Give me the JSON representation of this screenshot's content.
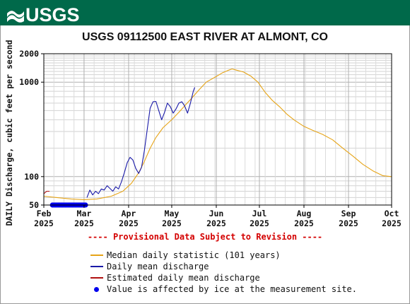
{
  "header": {
    "brand": "USGS"
  },
  "colors": {
    "header": "#00694a",
    "median": "#e6a417",
    "daily": "#1a1aa8",
    "estimated": "#b01010",
    "ice": "#0000ee",
    "provisional": "#d40000"
  },
  "chart_data": {
    "type": "line",
    "title": "USGS 09112500 EAST RIVER AT ALMONT, CO",
    "ylabel": "DAILY Discharge, cubic feet per second",
    "yscale": "log",
    "ylim": [
      50,
      2000
    ],
    "yticks": [
      "50",
      "100",
      "1000",
      "2000"
    ],
    "xlim": [
      "2025-02-01",
      "2025-10-01"
    ],
    "xticks": [
      {
        "date": "2025-02-01",
        "month": "Feb",
        "year": "2025"
      },
      {
        "date": "2025-03-01",
        "month": "Mar",
        "year": "2025"
      },
      {
        "date": "2025-04-01",
        "month": "Apr",
        "year": "2025"
      },
      {
        "date": "2025-05-01",
        "month": "May",
        "year": "2025"
      },
      {
        "date": "2025-06-01",
        "month": "Jun",
        "year": "2025"
      },
      {
        "date": "2025-07-01",
        "month": "Jul",
        "year": "2025"
      },
      {
        "date": "2025-08-01",
        "month": "Aug",
        "year": "2025"
      },
      {
        "date": "2025-09-01",
        "month": "Sep",
        "year": "2025"
      },
      {
        "date": "2025-10-01",
        "month": "Oct",
        "year": "2025"
      }
    ],
    "grid": true,
    "series": [
      {
        "name": "Median daily statistic (101 years)",
        "color": "#e6a417",
        "points": [
          [
            "2025-02-01",
            62
          ],
          [
            "2025-02-10",
            60
          ],
          [
            "2025-02-20",
            58
          ],
          [
            "2025-03-01",
            57
          ],
          [
            "2025-03-10",
            58
          ],
          [
            "2025-03-20",
            62
          ],
          [
            "2025-03-28",
            70
          ],
          [
            "2025-04-03",
            85
          ],
          [
            "2025-04-08",
            110
          ],
          [
            "2025-04-12",
            145
          ],
          [
            "2025-04-16",
            200
          ],
          [
            "2025-04-20",
            260
          ],
          [
            "2025-04-25",
            330
          ],
          [
            "2025-05-01",
            400
          ],
          [
            "2025-05-06",
            480
          ],
          [
            "2025-05-10",
            560
          ],
          [
            "2025-05-15",
            680
          ],
          [
            "2025-05-20",
            830
          ],
          [
            "2025-05-25",
            1000
          ],
          [
            "2025-06-01",
            1150
          ],
          [
            "2025-06-05",
            1250
          ],
          [
            "2025-06-09",
            1330
          ],
          [
            "2025-06-12",
            1380
          ],
          [
            "2025-06-15",
            1340
          ],
          [
            "2025-06-20",
            1280
          ],
          [
            "2025-06-25",
            1160
          ],
          [
            "2025-06-30",
            1000
          ],
          [
            "2025-07-05",
            780
          ],
          [
            "2025-07-10",
            640
          ],
          [
            "2025-07-15",
            550
          ],
          [
            "2025-07-20",
            460
          ],
          [
            "2025-07-25",
            400
          ],
          [
            "2025-08-01",
            340
          ],
          [
            "2025-08-07",
            310
          ],
          [
            "2025-08-14",
            280
          ],
          [
            "2025-08-21",
            245
          ],
          [
            "2025-08-28",
            200
          ],
          [
            "2025-09-04",
            165
          ],
          [
            "2025-09-11",
            135
          ],
          [
            "2025-09-18",
            115
          ],
          [
            "2025-09-25",
            102
          ],
          [
            "2025-10-01",
            100
          ]
        ]
      },
      {
        "name": "Daily mean discharge",
        "color": "#1a1aa8",
        "points": [
          [
            "2025-03-03",
            60
          ],
          [
            "2025-03-05",
            72
          ],
          [
            "2025-03-07",
            64
          ],
          [
            "2025-03-09",
            70
          ],
          [
            "2025-03-11",
            66
          ],
          [
            "2025-03-13",
            74
          ],
          [
            "2025-03-15",
            72
          ],
          [
            "2025-03-17",
            80
          ],
          [
            "2025-03-19",
            75
          ],
          [
            "2025-03-21",
            70
          ],
          [
            "2025-03-23",
            78
          ],
          [
            "2025-03-25",
            74
          ],
          [
            "2025-03-27",
            88
          ],
          [
            "2025-03-29",
            110
          ],
          [
            "2025-03-31",
            140
          ],
          [
            "2025-04-02",
            160
          ],
          [
            "2025-04-04",
            150
          ],
          [
            "2025-04-06",
            122
          ],
          [
            "2025-04-08",
            108
          ],
          [
            "2025-04-10",
            125
          ],
          [
            "2025-04-12",
            190
          ],
          [
            "2025-04-14",
            320
          ],
          [
            "2025-04-16",
            530
          ],
          [
            "2025-04-18",
            620
          ],
          [
            "2025-04-20",
            625
          ],
          [
            "2025-04-22",
            500
          ],
          [
            "2025-04-24",
            400
          ],
          [
            "2025-04-26",
            480
          ],
          [
            "2025-04-28",
            600
          ],
          [
            "2025-04-30",
            550
          ],
          [
            "2025-05-02",
            470
          ],
          [
            "2025-05-04",
            520
          ],
          [
            "2025-05-06",
            600
          ],
          [
            "2025-05-08",
            620
          ],
          [
            "2025-05-10",
            560
          ],
          [
            "2025-05-12",
            470
          ],
          [
            "2025-05-14",
            600
          ],
          [
            "2025-05-16",
            800
          ],
          [
            "2025-05-17",
            880
          ]
        ]
      },
      {
        "name": "Estimated daily mean discharge",
        "color": "#b01010",
        "points": [
          [
            "2025-02-01",
            66
          ],
          [
            "2025-02-03",
            70
          ],
          [
            "2025-02-05",
            70
          ]
        ]
      }
    ],
    "ice": {
      "name": "Value is affected by ice at the measurement site.",
      "color": "#0000ee",
      "start": "2025-02-07",
      "end": "2025-03-02",
      "value": 50
    },
    "annotation": "---- Provisional Data Subject to Revision ----"
  }
}
